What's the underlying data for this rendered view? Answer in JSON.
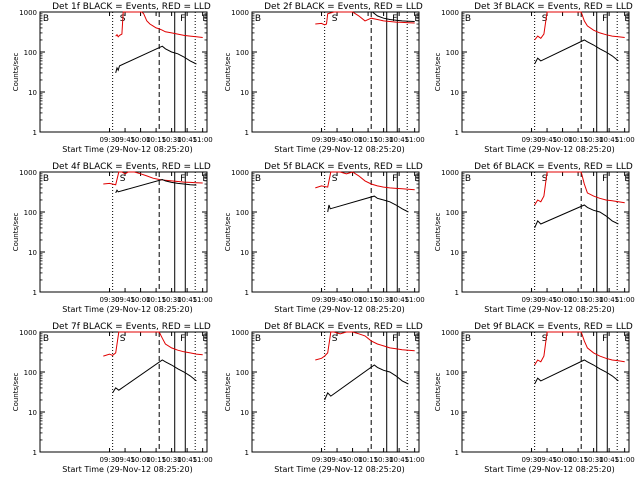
{
  "figure": {
    "colors": {
      "events": "#000000",
      "lld": "#e00000",
      "axis": "#000000"
    }
  },
  "chart_data": [
    {
      "type": "line",
      "title": "Det 1f BLACK = Events, RED = LLD",
      "xlabel": "Start Time (29-Nov-12 08:25:20)",
      "ylabel": "Counts/sec",
      "xlim": [
        8.38,
        11.07
      ],
      "ylim": [
        1,
        1000
      ],
      "xticks": [
        "09:30",
        "09:45",
        "10:00",
        "10:15",
        "10:30",
        "10:45",
        "11:00"
      ],
      "yticks": [
        "1",
        "10",
        "100",
        "1000"
      ],
      "interval_labels": [
        "B",
        "S",
        "F",
        "E"
      ],
      "vlines": [
        {
          "x": 9.55,
          "style": "dotted"
        },
        {
          "x": 10.3,
          "style": "dashed"
        },
        {
          "x": 10.55,
          "style": "solid"
        },
        {
          "x": 10.72,
          "style": "solid"
        },
        {
          "x": 10.88,
          "style": "dotted"
        }
      ],
      "series": [
        {
          "name": "LLD",
          "color": "red",
          "x": [
            9.6,
            9.62,
            9.64,
            9.66,
            9.7,
            9.72,
            10.02,
            10.05,
            10.1,
            10.15,
            10.2,
            10.25,
            10.3,
            10.35,
            10.4,
            10.5,
            10.6,
            10.7,
            10.8,
            10.9,
            11.0
          ],
          "y": [
            250,
            270,
            240,
            260,
            280,
            1000,
            1000,
            900,
            600,
            500,
            450,
            400,
            380,
            350,
            320,
            300,
            280,
            260,
            250,
            240,
            230
          ]
        },
        {
          "name": "Events",
          "color": "black",
          "x": [
            9.6,
            9.62,
            9.64,
            9.66,
            10.35,
            10.4,
            10.5,
            10.6,
            10.7,
            10.8,
            10.9
          ],
          "y": [
            30,
            40,
            35,
            45,
            140,
            120,
            100,
            90,
            75,
            60,
            50
          ]
        }
      ]
    },
    {
      "type": "line",
      "title": "Det 2f BLACK = Events, RED = LLD",
      "xlabel": "Start Time (29-Nov-12 08:25:20)",
      "ylabel": "Counts/sec",
      "xlim": [
        8.38,
        11.07
      ],
      "ylim": [
        1,
        1000
      ],
      "xticks": [
        "09:30",
        "09:45",
        "10:00",
        "10:15",
        "10:30",
        "10:45",
        "11:00"
      ],
      "yticks": [
        "1",
        "10",
        "100",
        "1000"
      ],
      "interval_labels": [
        "B",
        "S",
        "F",
        "E"
      ],
      "vlines": [
        {
          "x": 9.55,
          "style": "dotted"
        },
        {
          "x": 10.3,
          "style": "dashed"
        },
        {
          "x": 10.55,
          "style": "solid"
        },
        {
          "x": 10.72,
          "style": "solid"
        },
        {
          "x": 10.88,
          "style": "dotted"
        }
      ],
      "series": [
        {
          "name": "LLD",
          "color": "red",
          "x": [
            9.4,
            9.5,
            9.55,
            9.58,
            9.6,
            9.7,
            9.8,
            9.9,
            10.0,
            10.1,
            10.2,
            10.3,
            10.4,
            10.5,
            10.6,
            10.7,
            10.8,
            10.9,
            11.0
          ],
          "y": [
            500,
            520,
            480,
            500,
            900,
            1000,
            1000,
            1000,
            1000,
            800,
            600,
            700,
            650,
            600,
            580,
            560,
            550,
            540,
            530
          ]
        },
        {
          "name": "Events",
          "color": "black",
          "x": [
            10.32,
            10.4,
            10.5,
            10.6,
            10.7,
            10.8,
            10.9,
            11.0
          ],
          "y": [
            1000,
            800,
            700,
            650,
            620,
            600,
            590,
            580
          ]
        }
      ]
    },
    {
      "type": "line",
      "title": "Det 3f BLACK = Events, RED = LLD",
      "xlabel": "Start Time (29-Nov-12 08:25:20)",
      "ylabel": "Counts/sec",
      "xlim": [
        8.38,
        11.07
      ],
      "ylim": [
        1,
        1000
      ],
      "xticks": [
        "09:30",
        "09:45",
        "10:00",
        "10:15",
        "10:30",
        "10:45",
        "11:00"
      ],
      "yticks": [
        "1",
        "10",
        "100",
        "1000"
      ],
      "interval_labels": [
        "B",
        "S",
        "F",
        "E"
      ],
      "vlines": [
        {
          "x": 9.55,
          "style": "dotted"
        },
        {
          "x": 10.3,
          "style": "dashed"
        },
        {
          "x": 10.55,
          "style": "solid"
        },
        {
          "x": 10.72,
          "style": "solid"
        },
        {
          "x": 10.88,
          "style": "dotted"
        }
      ],
      "series": [
        {
          "name": "LLD",
          "color": "red",
          "x": [
            9.55,
            9.6,
            9.65,
            9.7,
            9.75,
            10.3,
            10.35,
            10.4,
            10.5,
            10.6,
            10.7,
            10.8,
            10.9,
            11.0
          ],
          "y": [
            200,
            250,
            220,
            280,
            1000,
            1000,
            600,
            450,
            350,
            300,
            270,
            250,
            240,
            230
          ]
        },
        {
          "name": "Events",
          "color": "black",
          "x": [
            9.55,
            9.6,
            9.65,
            10.35,
            10.4,
            10.5,
            10.6,
            10.7,
            10.8,
            10.9
          ],
          "y": [
            50,
            70,
            60,
            200,
            180,
            150,
            120,
            100,
            80,
            60
          ]
        }
      ]
    },
    {
      "type": "line",
      "title": "Det 4f BLACK = Events, RED = LLD",
      "xlabel": "Start Time (29-Nov-12 08:25:20)",
      "ylabel": "Counts/sec",
      "xlim": [
        8.38,
        11.07
      ],
      "ylim": [
        1,
        1000
      ],
      "xticks": [
        "09:30",
        "09:45",
        "10:00",
        "10:15",
        "10:30",
        "10:45",
        "11:00"
      ],
      "yticks": [
        "1",
        "10",
        "100",
        "1000"
      ],
      "interval_labels": [
        "B",
        "S",
        "F",
        "E"
      ],
      "vlines": [
        {
          "x": 9.55,
          "style": "dotted"
        },
        {
          "x": 10.3,
          "style": "dashed"
        },
        {
          "x": 10.55,
          "style": "solid"
        },
        {
          "x": 10.72,
          "style": "solid"
        },
        {
          "x": 10.88,
          "style": "dotted"
        }
      ],
      "series": [
        {
          "name": "LLD",
          "color": "red",
          "x": [
            9.4,
            9.5,
            9.6,
            9.65,
            9.7,
            9.75,
            9.8,
            9.9,
            10.0,
            10.1,
            10.2,
            10.3,
            10.4,
            10.5,
            10.6,
            10.7,
            10.8,
            10.9,
            11.0
          ],
          "y": [
            500,
            520,
            480,
            1000,
            1000,
            900,
            1000,
            1000,
            900,
            800,
            700,
            650,
            620,
            600,
            580,
            560,
            550,
            540,
            530
          ]
        },
        {
          "name": "Events",
          "color": "black",
          "x": [
            9.6,
            9.62,
            9.64,
            10.35,
            10.4,
            10.5,
            10.6,
            10.7,
            10.8,
            10.9
          ],
          "y": [
            300,
            350,
            320,
            650,
            600,
            550,
            520,
            500,
            480,
            470
          ]
        }
      ]
    },
    {
      "type": "line",
      "title": "Det 5f BLACK = Events, RED = LLD",
      "xlabel": "Start Time (29-Nov-12 08:25:20)",
      "ylabel": "Counts/sec",
      "xlim": [
        8.38,
        11.07
      ],
      "ylim": [
        1,
        1000
      ],
      "xticks": [
        "09:30",
        "09:45",
        "10:00",
        "10:15",
        "10:30",
        "10:45",
        "11:00"
      ],
      "yticks": [
        "1",
        "10",
        "100",
        "1000"
      ],
      "interval_labels": [
        "B",
        "S",
        "F",
        "E"
      ],
      "vlines": [
        {
          "x": 9.55,
          "style": "dotted"
        },
        {
          "x": 10.3,
          "style": "dashed"
        },
        {
          "x": 10.55,
          "style": "solid"
        },
        {
          "x": 10.72,
          "style": "solid"
        },
        {
          "x": 10.88,
          "style": "dotted"
        }
      ],
      "series": [
        {
          "name": "LLD",
          "color": "red",
          "x": [
            9.4,
            9.5,
            9.6,
            9.65,
            9.7,
            9.8,
            9.9,
            10.0,
            10.1,
            10.2,
            10.3,
            10.4,
            10.5,
            10.6,
            10.7,
            10.8,
            10.9,
            11.0
          ],
          "y": [
            400,
            450,
            420,
            1000,
            1000,
            1000,
            900,
            1000,
            800,
            600,
            500,
            450,
            420,
            400,
            390,
            380,
            370,
            360
          ]
        },
        {
          "name": "Events",
          "color": "black",
          "x": [
            9.6,
            9.62,
            9.64,
            10.35,
            10.4,
            10.5,
            10.6,
            10.7,
            10.8,
            10.9
          ],
          "y": [
            100,
            150,
            120,
            250,
            220,
            200,
            180,
            150,
            120,
            100
          ]
        }
      ]
    },
    {
      "type": "line",
      "title": "Det 6f BLACK = Events, RED = LLD",
      "xlabel": "Start Time (29-Nov-12 08:25:20)",
      "ylabel": "Counts/sec",
      "xlim": [
        8.38,
        11.07
      ],
      "ylim": [
        1,
        1000
      ],
      "xticks": [
        "09:30",
        "09:45",
        "10:00",
        "10:15",
        "10:30",
        "10:45",
        "11:00"
      ],
      "yticks": [
        "1",
        "10",
        "100",
        "1000"
      ],
      "interval_labels": [
        "B",
        "S",
        "F",
        "E"
      ],
      "vlines": [
        {
          "x": 9.55,
          "style": "dotted"
        },
        {
          "x": 10.3,
          "style": "dashed"
        },
        {
          "x": 10.55,
          "style": "solid"
        },
        {
          "x": 10.72,
          "style": "solid"
        },
        {
          "x": 10.88,
          "style": "dotted"
        }
      ],
      "series": [
        {
          "name": "LLD",
          "color": "red",
          "x": [
            9.55,
            9.6,
            9.65,
            9.7,
            9.75,
            10.3,
            10.35,
            10.4,
            10.5,
            10.6,
            10.7,
            10.8,
            10.9,
            11.0
          ],
          "y": [
            150,
            200,
            180,
            250,
            1000,
            1000,
            500,
            300,
            250,
            220,
            200,
            190,
            180,
            170
          ]
        },
        {
          "name": "Events",
          "color": "black",
          "x": [
            9.55,
            9.6,
            9.65,
            10.35,
            10.4,
            10.5,
            10.6,
            10.7,
            10.8,
            10.9
          ],
          "y": [
            40,
            60,
            50,
            150,
            130,
            110,
            100,
            80,
            60,
            50
          ]
        }
      ]
    },
    {
      "type": "line",
      "title": "Det 7f BLACK = Events, RED = LLD",
      "xlabel": "Start Time (29-Nov-12 08:25:20)",
      "ylabel": "Counts/sec",
      "xlim": [
        8.38,
        11.07
      ],
      "ylim": [
        1,
        1000
      ],
      "xticks": [
        "09:30",
        "09:45",
        "10:00",
        "10:15",
        "10:30",
        "10:45",
        "11:00"
      ],
      "yticks": [
        "1",
        "10",
        "100",
        "1000"
      ],
      "interval_labels": [
        "B",
        "S",
        "F",
        "E"
      ],
      "vlines": [
        {
          "x": 9.55,
          "style": "dotted"
        },
        {
          "x": 10.3,
          "style": "dashed"
        },
        {
          "x": 10.55,
          "style": "solid"
        },
        {
          "x": 10.72,
          "style": "solid"
        },
        {
          "x": 10.88,
          "style": "dotted"
        }
      ],
      "series": [
        {
          "name": "LLD",
          "color": "red",
          "x": [
            9.4,
            9.5,
            9.55,
            9.6,
            9.65,
            9.7,
            10.3,
            10.35,
            10.4,
            10.5,
            10.6,
            10.7,
            10.8,
            10.9,
            11.0
          ],
          "y": [
            250,
            280,
            260,
            300,
            1000,
            1000,
            1000,
            700,
            500,
            400,
            350,
            320,
            300,
            280,
            270
          ]
        },
        {
          "name": "Events",
          "color": "black",
          "x": [
            9.55,
            9.6,
            9.65,
            10.35,
            10.4,
            10.5,
            10.6,
            10.7,
            10.8,
            10.9
          ],
          "y": [
            30,
            40,
            35,
            200,
            180,
            150,
            120,
            100,
            80,
            60
          ]
        }
      ]
    },
    {
      "type": "line",
      "title": "Det 8f BLACK = Events, RED = LLD",
      "xlabel": "Start Time (29-Nov-12 08:25:20)",
      "ylabel": "Counts/sec",
      "xlim": [
        8.38,
        11.07
      ],
      "ylim": [
        1,
        1000
      ],
      "xticks": [
        "09:30",
        "09:45",
        "10:00",
        "10:15",
        "10:30",
        "10:45",
        "11:00"
      ],
      "yticks": [
        "1",
        "10",
        "100",
        "1000"
      ],
      "interval_labels": [
        "B",
        "S",
        "F",
        "E"
      ],
      "vlines": [
        {
          "x": 9.55,
          "style": "dotted"
        },
        {
          "x": 10.3,
          "style": "dashed"
        },
        {
          "x": 10.55,
          "style": "solid"
        },
        {
          "x": 10.72,
          "style": "solid"
        },
        {
          "x": 10.88,
          "style": "dotted"
        }
      ],
      "series": [
        {
          "name": "LLD",
          "color": "red",
          "x": [
            9.4,
            9.5,
            9.55,
            9.6,
            9.65,
            9.7,
            9.8,
            9.9,
            10.0,
            10.1,
            10.2,
            10.3,
            10.4,
            10.5,
            10.6,
            10.7,
            10.8,
            10.9,
            11.0
          ],
          "y": [
            200,
            220,
            250,
            300,
            1000,
            1000,
            900,
            1000,
            1000,
            900,
            800,
            600,
            500,
            450,
            400,
            380,
            360,
            350,
            340
          ]
        },
        {
          "name": "Events",
          "color": "black",
          "x": [
            9.55,
            9.6,
            9.65,
            10.35,
            10.4,
            10.5,
            10.6,
            10.7,
            10.8,
            10.9
          ],
          "y": [
            20,
            30,
            25,
            150,
            130,
            110,
            100,
            80,
            60,
            50
          ]
        }
      ]
    },
    {
      "type": "line",
      "title": "Det 9f BLACK = Events, RED = LLD",
      "xlabel": "Start Time (29-Nov-12 08:25:20)",
      "ylabel": "Counts/sec",
      "xlim": [
        8.38,
        11.07
      ],
      "ylim": [
        1,
        1000
      ],
      "xticks": [
        "09:30",
        "09:45",
        "10:00",
        "10:15",
        "10:30",
        "10:45",
        "11:00"
      ],
      "yticks": [
        "1",
        "10",
        "100",
        "1000"
      ],
      "interval_labels": [
        "B",
        "S",
        "F",
        "E"
      ],
      "vlines": [
        {
          "x": 9.55,
          "style": "dotted"
        },
        {
          "x": 10.3,
          "style": "dashed"
        },
        {
          "x": 10.55,
          "style": "solid"
        },
        {
          "x": 10.72,
          "style": "solid"
        },
        {
          "x": 10.88,
          "style": "dotted"
        }
      ],
      "series": [
        {
          "name": "LLD",
          "color": "red",
          "x": [
            9.55,
            9.6,
            9.65,
            9.7,
            9.75,
            10.3,
            10.35,
            10.4,
            10.5,
            10.6,
            10.7,
            10.8,
            10.9,
            11.0
          ],
          "y": [
            150,
            200,
            180,
            250,
            1000,
            1000,
            600,
            400,
            300,
            250,
            220,
            200,
            190,
            180
          ]
        },
        {
          "name": "Events",
          "color": "black",
          "x": [
            9.55,
            9.6,
            9.65,
            10.35,
            10.4,
            10.5,
            10.6,
            10.7,
            10.8,
            10.9
          ],
          "y": [
            50,
            70,
            60,
            200,
            180,
            150,
            120,
            100,
            80,
            60
          ]
        }
      ]
    }
  ]
}
